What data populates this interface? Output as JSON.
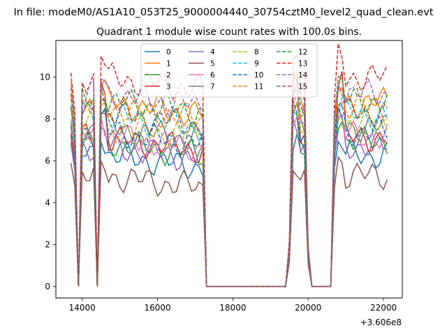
{
  "chart_data": {
    "type": "line",
    "suptitle": "In file: modeM0/AS1A10_053T25_9000004440_30754cztM0_level2_quad_clean.evt",
    "title": "Quadrant 1 module wise count rates with 100.0s bins.",
    "xlabel": "",
    "ylabel": "",
    "x_offset_label": "+3.606e8",
    "xlim": [
      13300,
      22500
    ],
    "ylim": [
      -0.55,
      11.75
    ],
    "xticks": [
      14000,
      16000,
      18000,
      20000,
      22000
    ],
    "xtick_labels": [
      "14000",
      "16000",
      "18000",
      "20000",
      "22000"
    ],
    "yticks": [
      0,
      2,
      4,
      6,
      8,
      10
    ],
    "ytick_labels": [
      "0",
      "2",
      "4",
      "6",
      "8",
      "10"
    ],
    "grid": false,
    "legend_position": "upper center",
    "legend_columns": 4,
    "segments": [
      {
        "start": 13700,
        "end": 14400,
        "kind": "active"
      },
      {
        "start": 14500,
        "end": 17200,
        "kind": "active"
      },
      {
        "start": 17300,
        "end": 19400,
        "kind": "zero"
      },
      {
        "start": 19500,
        "end": 20000,
        "kind": "active"
      },
      {
        "start": 20100,
        "end": 20600,
        "kind": "zero"
      },
      {
        "start": 20700,
        "end": 22100,
        "kind": "active"
      }
    ],
    "series": [
      {
        "name": "0",
        "color": "#1f77b4",
        "dash": "solid",
        "base": 6.3,
        "high": 6.9,
        "first": 6.8
      },
      {
        "name": "1",
        "color": "#ff7f0e",
        "dash": "solid",
        "base": 8.8,
        "high": 9.6,
        "first": 9.8
      },
      {
        "name": "2",
        "color": "#2ca02c",
        "dash": "solid",
        "base": 6.9,
        "high": 8.2,
        "first": 7.2
      },
      {
        "name": "3",
        "color": "#d62728",
        "dash": "solid",
        "base": 7.1,
        "high": 9.8,
        "first": 7.3
      },
      {
        "name": "4",
        "color": "#9467bd",
        "dash": "solid",
        "base": 6.7,
        "high": 7.6,
        "first": 6.9
      },
      {
        "name": "5",
        "color": "#8c564b",
        "dash": "solid",
        "base": 5.3,
        "high": 6.0,
        "first": 5.9
      },
      {
        "name": "6",
        "color": "#e377c2",
        "dash": "solid",
        "base": 7.2,
        "high": 8.1,
        "first": 7.6
      },
      {
        "name": "7",
        "color": "#7f7f7f",
        "dash": "solid",
        "base": 7.6,
        "high": 8.3,
        "first": 7.9
      },
      {
        "name": "8",
        "color": "#bcbd22",
        "dash": "dashed",
        "base": 7.7,
        "high": 8.6,
        "first": 8.0
      },
      {
        "name": "9",
        "color": "#17becf",
        "dash": "dashed",
        "base": 8.2,
        "high": 8.9,
        "first": 8.5
      },
      {
        "name": "10",
        "color": "#1f77b4",
        "dash": "dashed",
        "base": 7.4,
        "high": 8.2,
        "first": 7.7
      },
      {
        "name": "11",
        "color": "#ff7f0e",
        "dash": "dashed",
        "base": 8.6,
        "high": 9.4,
        "first": 9.0
      },
      {
        "name": "12",
        "color": "#2ca02c",
        "dash": "dashed",
        "base": 8.9,
        "high": 9.6,
        "first": 9.2
      },
      {
        "name": "13",
        "color": "#d62728",
        "dash": "dashed",
        "base": 10.0,
        "high": 11.0,
        "first": 10.2
      },
      {
        "name": "14",
        "color": "#9467bd",
        "dash": "dashed",
        "base": 9.2,
        "high": 9.9,
        "first": 9.5
      },
      {
        "name": "15",
        "color": "#8c564b",
        "dash": "dashed",
        "base": 8.3,
        "high": 9.0,
        "first": 8.6
      }
    ]
  }
}
